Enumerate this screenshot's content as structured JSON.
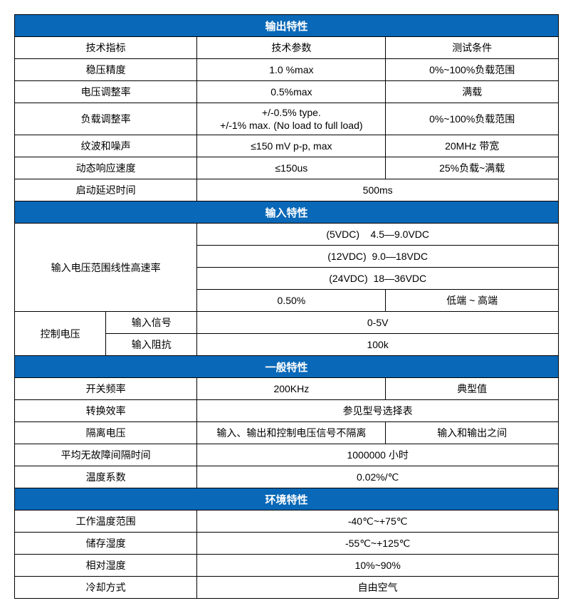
{
  "headers": {
    "output": "输出特性",
    "input": "输入特性",
    "general": "一般特性",
    "environment": "环境特性"
  },
  "colors": {
    "header_bg": "#0968b7",
    "header_text": "#ffffff",
    "border": "#000000",
    "text": "#000000"
  },
  "output": {
    "row1": {
      "c1": "技术指标",
      "c2": "技术参数",
      "c3": "测试条件"
    },
    "row2": {
      "c1": "稳压精度",
      "c2": "1.0 %max",
      "c3": "0%~100%负载范围"
    },
    "row3": {
      "c1": "电压调整率",
      "c2": "0.5%max",
      "c3": "满载"
    },
    "row4": {
      "c1": "负载调整率",
      "c2": "+/-0.5% type.\n+/-1% max. (No load to full load)",
      "c3": "0%~100%负载范围"
    },
    "row5": {
      "c1": "纹波和噪声",
      "c2": "≤150 mV p-p, max",
      "c3": "20MHz 带宽"
    },
    "row6": {
      "c1": "动态响应速度",
      "c2": "≤150us",
      "c3": "25%负载~满载"
    },
    "row7": {
      "c1": "启动延迟时间",
      "c2": "500ms"
    }
  },
  "input": {
    "row1": {
      "c1": "输入电压范围线性高速率",
      "c2": "(5VDC)    4.5—9.0VDC"
    },
    "row2": {
      "c2": "(12VDC)  9.0—18VDC"
    },
    "row3": {
      "c2": "(24VDC)  18—36VDC"
    },
    "row4": {
      "c2": "0.50%",
      "c3": "低端  ~  高端"
    },
    "row5": {
      "c1": "控制电压",
      "c2": "输入信号",
      "c3": "0-5V"
    },
    "row6": {
      "c2": "输入阻抗",
      "c3": "100k"
    }
  },
  "general": {
    "row1": {
      "c1": "开关频率",
      "c2": "200KHz",
      "c3": "典型值"
    },
    "row2": {
      "c1": "转换效率",
      "c2": "参见型号选择表"
    },
    "row3": {
      "c1": "隔离电压",
      "c2": "输入、输出和控制电压信号不隔离",
      "c3": "输入和输出之间"
    },
    "row4": {
      "c1": "平均无故障间隔时间",
      "c2": "1000000 小时"
    },
    "row5": {
      "c1": "温度系数",
      "c2": "0.02%/℃"
    }
  },
  "environment": {
    "row1": {
      "c1": "工作温度范围",
      "c2": "-40℃~+75℃"
    },
    "row2": {
      "c1": "储存湿度",
      "c2": "-55℃~+125℃"
    },
    "row3": {
      "c1": "相对湿度",
      "c2": "10%~90%"
    },
    "row4": {
      "c1": "冷却方式",
      "c2": "自由空气"
    }
  }
}
